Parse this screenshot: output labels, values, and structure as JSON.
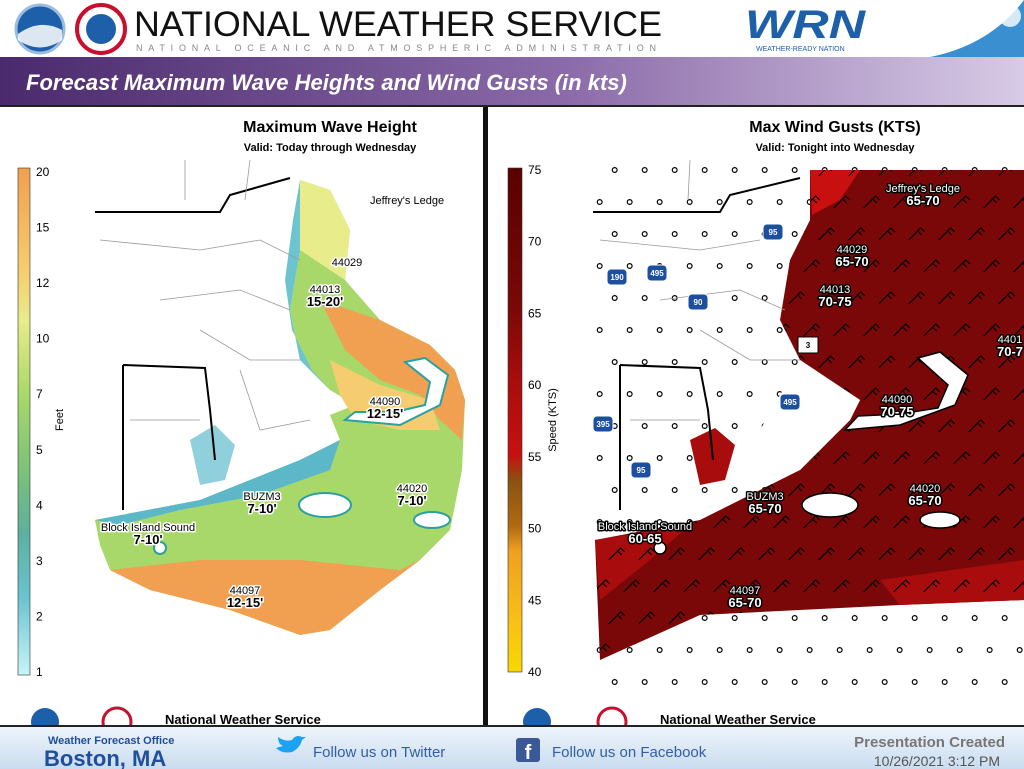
{
  "header": {
    "agency": "NATIONAL WEATHER SERVICE",
    "parent_agency": "NATIONAL OCEANIC AND ATMOSPHERIC ADMINISTRATION",
    "wrn_logo": "WRN",
    "wrn_tagline": "WEATHER-READY NATION"
  },
  "banner": {
    "title": "Forecast Maximum Wave Heights and Wind Gusts (in kts)"
  },
  "maps": [
    {
      "title": "Maximum Wave Height",
      "subtitle": "Valid: Today through Wednesday",
      "legend": {
        "label": "Feet",
        "ticks": [
          20,
          15,
          12,
          10,
          7,
          5,
          4,
          3,
          2,
          1
        ]
      },
      "labels": [
        {
          "name": "Jeffrey's Ledge"
        },
        {
          "name": "44029"
        },
        {
          "name": "44013",
          "value": "15-20'"
        },
        {
          "name": "44090",
          "value": "12-15'"
        },
        {
          "name": "BUZM3",
          "value": "7-10'"
        },
        {
          "name": "44020",
          "value": "7-10'"
        },
        {
          "name": "Block Island Sound",
          "value": "7-10'"
        },
        {
          "name": "44097",
          "value": "12-15'"
        }
      ],
      "footer": "National Weather Service"
    },
    {
      "title": "Max Wind Gusts (KTS)",
      "subtitle": "Valid: Tonight into Wednesday",
      "legend": {
        "label": "Speed (KTS)",
        "ticks": [
          75,
          70,
          65,
          60,
          55,
          50,
          45,
          40
        ]
      },
      "labels": [
        {
          "name": "Jeffrey's Ledge",
          "value": "65-70"
        },
        {
          "name": "44029",
          "value": "65-70"
        },
        {
          "name": "44013",
          "value": "70-75"
        },
        {
          "name": "4401",
          "value": "70-7"
        },
        {
          "name": "44090",
          "value": "70-75"
        },
        {
          "name": "44020",
          "value": "65-70"
        },
        {
          "name": "BUZM3",
          "value": "65-70"
        },
        {
          "name": "Block Island Sound",
          "value": "60-65"
        },
        {
          "name": "44097",
          "value": "65-70"
        }
      ],
      "road_shields": [
        "95",
        "190",
        "495",
        "90",
        "3",
        "495",
        "395",
        "95"
      ],
      "footer": "National Weather Service"
    }
  ],
  "footer": {
    "office_label": "Weather Forecast Office",
    "office": "Boston, MA",
    "twitter": "Follow us on Twitter",
    "facebook": "Follow us on Facebook",
    "created_label": "Presentation Created",
    "created": "10/26/2021 3:12 PM"
  }
}
